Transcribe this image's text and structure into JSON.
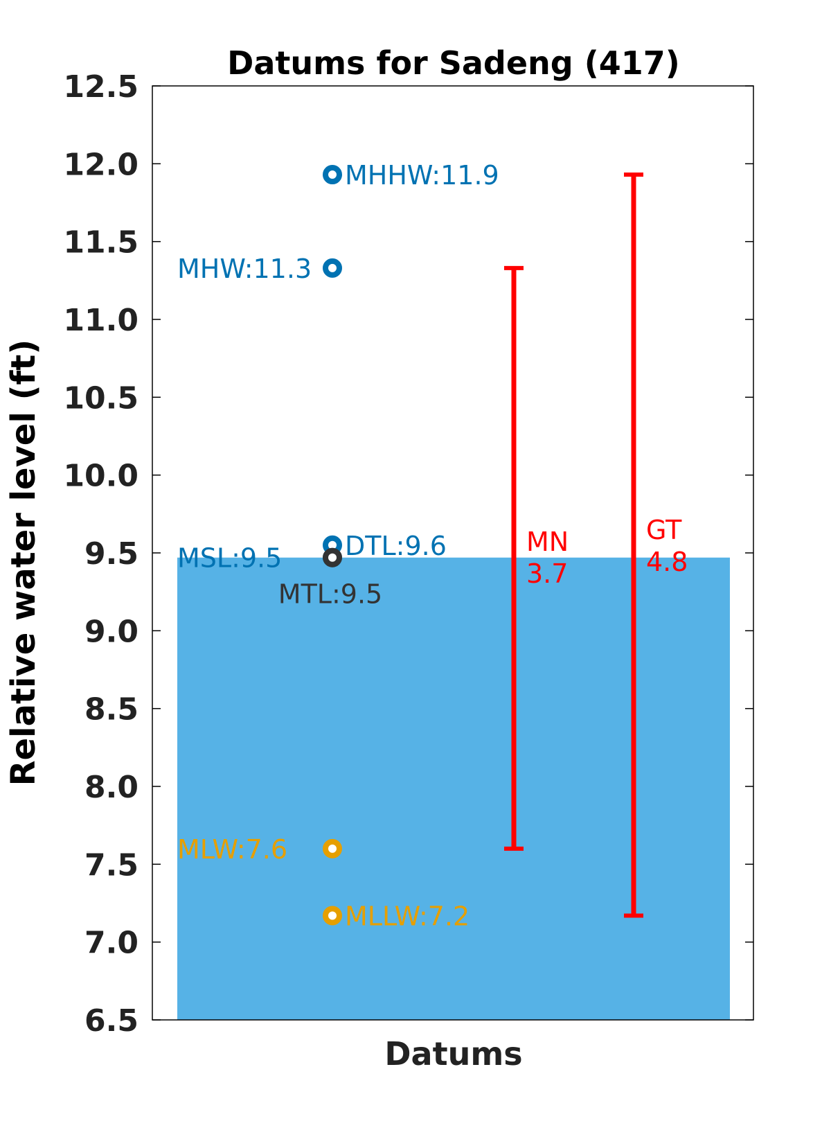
{
  "chart_data": {
    "type": "scatter",
    "title": "Datums for Sadeng (417)",
    "xlabel": "Datums",
    "ylabel": "Relative water level (ft)",
    "ylim": [
      6.5,
      12.5
    ],
    "yticks": [
      "6.5",
      "7.0",
      "7.5",
      "8.0",
      "8.5",
      "9.0",
      "9.5",
      "10.0",
      "10.5",
      "11.0",
      "11.5",
      "12.0",
      "12.5"
    ],
    "grid": false,
    "background_bar": {
      "value": 9.47,
      "color": "#56B2E6"
    },
    "points": [
      {
        "label": "MHHW:11.9",
        "value": 11.93,
        "color": "#0072B2",
        "label_side": "right"
      },
      {
        "label": "MHW:11.3",
        "value": 11.33,
        "color": "#0072B2",
        "label_side": "left"
      },
      {
        "label": "DTL:9.6",
        "value": 9.55,
        "color": "#0072B2",
        "label_side": "right"
      },
      {
        "label": "MSL:9.5",
        "value": 9.47,
        "color": "#0072B2",
        "label_side": "left"
      },
      {
        "label": "MTL:9.5",
        "value": 9.47,
        "color": "#333333",
        "label_side": "below"
      },
      {
        "label": "MLW:7.6",
        "value": 7.6,
        "color": "#E69F00",
        "label_side": "left"
      },
      {
        "label": "MLLW:7.2",
        "value": 7.17,
        "color": "#E69F00",
        "label_side": "right"
      }
    ],
    "ranges": [
      {
        "name": "MN",
        "value_label": "3.7",
        "low": 7.6,
        "high": 11.33,
        "color": "#FF0000"
      },
      {
        "name": "GT",
        "value_label": "4.8",
        "low": 7.17,
        "high": 11.93,
        "color": "#FF0000"
      }
    ]
  }
}
